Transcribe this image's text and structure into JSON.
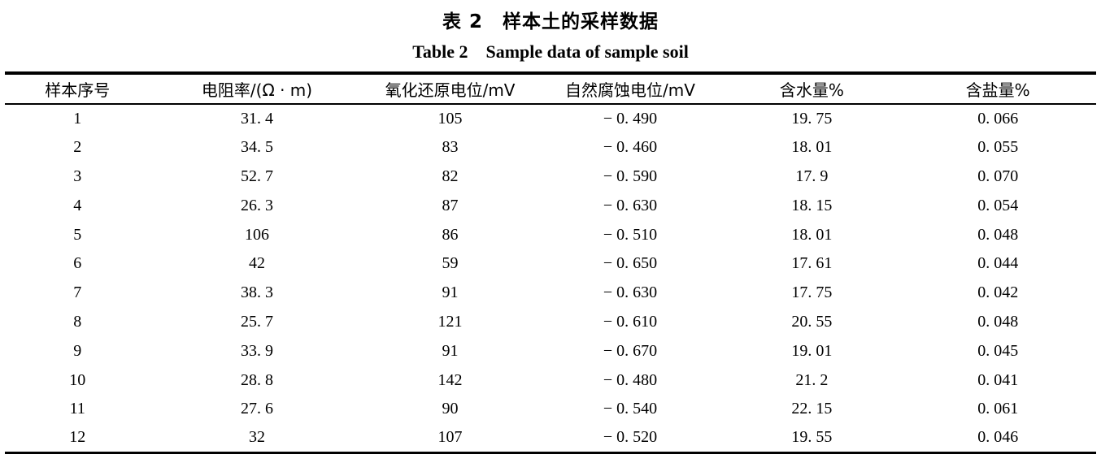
{
  "titles": {
    "zh": "表 2　样本土的采样数据",
    "en": "Table 2　Sample data of sample soil"
  },
  "table": {
    "columns": [
      "样本序号",
      "电阻率/(Ω · m)",
      "氧化还原电位/mV",
      "自然腐蚀电位/mV",
      "含水量%",
      "含盐量%"
    ],
    "col_widths": [
      "13.3%",
      "19.6%",
      "15.8%",
      "17.2%",
      "16.1%",
      "18.0%"
    ],
    "rows": [
      [
        "1",
        "31. 4",
        "105",
        "− 0. 490",
        "19. 75",
        "0. 066"
      ],
      [
        "2",
        "34. 5",
        "83",
        "− 0. 460",
        "18. 01",
        "0. 055"
      ],
      [
        "3",
        "52. 7",
        "82",
        "− 0. 590",
        "17. 9",
        "0. 070"
      ],
      [
        "4",
        "26. 3",
        "87",
        "− 0. 630",
        "18. 15",
        "0. 054"
      ],
      [
        "5",
        "106",
        "86",
        "− 0. 510",
        "18. 01",
        "0. 048"
      ],
      [
        "6",
        "42",
        "59",
        "− 0. 650",
        "17. 61",
        "0. 044"
      ],
      [
        "7",
        "38. 3",
        "91",
        "− 0. 630",
        "17. 75",
        "0. 042"
      ],
      [
        "8",
        "25. 7",
        "121",
        "− 0. 610",
        "20. 55",
        "0. 048"
      ],
      [
        "9",
        "33. 9",
        "91",
        "− 0. 670",
        "19. 01",
        "0. 045"
      ],
      [
        "10",
        "28. 8",
        "142",
        "− 0. 480",
        "21. 2",
        "0. 041"
      ],
      [
        "11",
        "27. 6",
        "90",
        "− 0. 540",
        "22. 15",
        "0. 061"
      ],
      [
        "12",
        "32",
        "107",
        "− 0. 520",
        "19. 55",
        "0. 046"
      ]
    ]
  },
  "chart_data": {
    "type": "table",
    "title": "表 2 样本土的采样数据 / Table 2 Sample data of sample soil",
    "columns": [
      "样本序号",
      "电阻率/(Ω·m)",
      "氧化还原电位/mV",
      "自然腐蚀电位/mV",
      "含水量%",
      "含盐量%"
    ],
    "rows": [
      [
        1,
        31.4,
        105,
        -0.49,
        19.75,
        0.066
      ],
      [
        2,
        34.5,
        83,
        -0.46,
        18.01,
        0.055
      ],
      [
        3,
        52.7,
        82,
        -0.59,
        17.9,
        0.07
      ],
      [
        4,
        26.3,
        87,
        -0.63,
        18.15,
        0.054
      ],
      [
        5,
        106,
        86,
        -0.51,
        18.01,
        0.048
      ],
      [
        6,
        42,
        59,
        -0.65,
        17.61,
        0.044
      ],
      [
        7,
        38.3,
        91,
        -0.63,
        17.75,
        0.042
      ],
      [
        8,
        25.7,
        121,
        -0.61,
        20.55,
        0.048
      ],
      [
        9,
        33.9,
        91,
        -0.67,
        19.01,
        0.045
      ],
      [
        10,
        28.8,
        142,
        -0.48,
        21.2,
        0.041
      ],
      [
        11,
        27.6,
        90,
        -0.54,
        22.15,
        0.061
      ],
      [
        12,
        32,
        107,
        -0.52,
        19.55,
        0.046
      ]
    ]
  }
}
